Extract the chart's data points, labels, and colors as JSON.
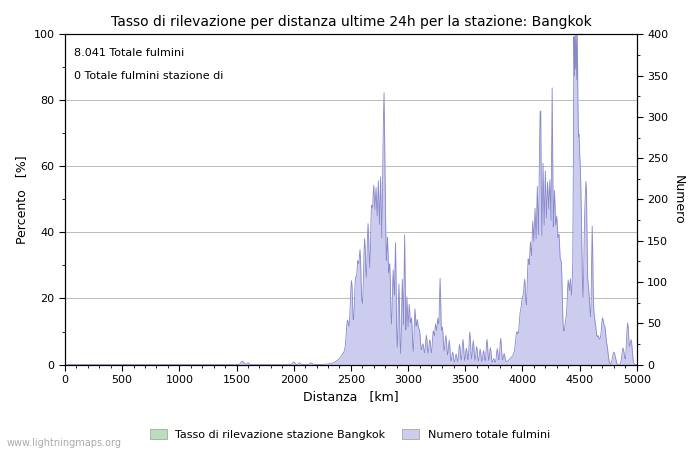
{
  "title": "Tasso di rilevazione per distanza ultime 24h per la stazione: Bangkok",
  "xlabel": "Distanza   [km]",
  "ylabel_left": "Percento   [%]",
  "ylabel_right": "Numero",
  "annotation_line1": "8.041 Totale fulmini",
  "annotation_line2": "0 Totale fulmini stazione di",
  "xlim": [
    0,
    5000
  ],
  "ylim_left": [
    0,
    100
  ],
  "ylim_right": [
    0,
    400
  ],
  "xticks": [
    0,
    500,
    1000,
    1500,
    2000,
    2500,
    3000,
    3500,
    4000,
    4500,
    5000
  ],
  "yticks_left": [
    0,
    20,
    40,
    60,
    80,
    100
  ],
  "yticks_right": [
    0,
    50,
    100,
    150,
    200,
    250,
    300,
    350,
    400
  ],
  "legend_label_green": "Tasso di rilevazione stazione Bangkok",
  "legend_label_blue": "Numero totale fulmini",
  "watermark": "www.lightningmaps.org",
  "line_color": "#8888cc",
  "fill_color_blue": "#ccccee",
  "fill_color_green": "#bbddbb",
  "bg_color": "#ffffff",
  "grid_color": "#bbbbbb"
}
